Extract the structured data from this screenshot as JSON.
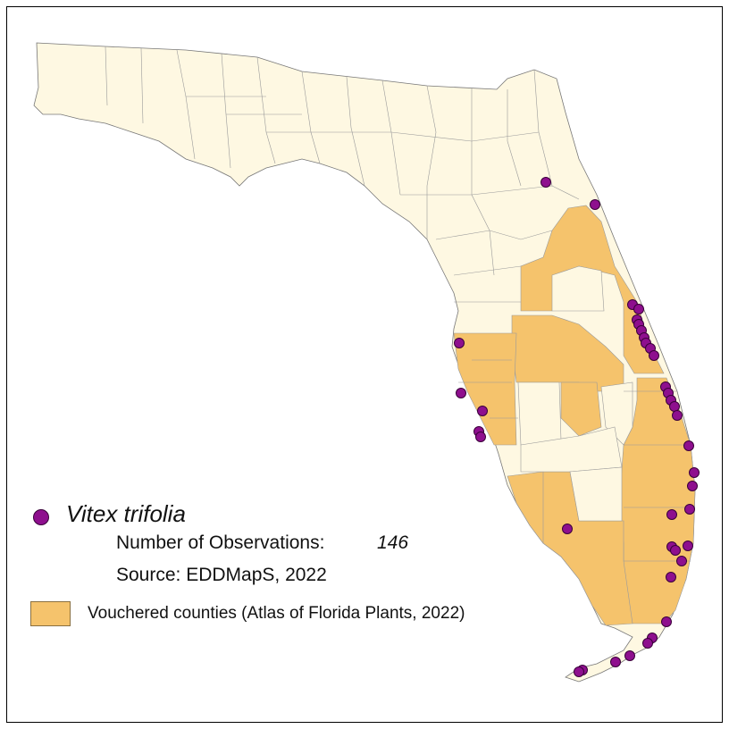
{
  "legend": {
    "species_name": "Vitex trifolia",
    "observations_label": "Number of Observations:",
    "observations_value": "146",
    "source_label": "Source: EDDMapS, 2022",
    "vouchered_label": "Vouchered counties (Atlas of Florida Plants, 2022)"
  },
  "colors": {
    "land": "#fef8e2",
    "vouchered": "#f5c36c",
    "county_line": "#9a9a9a",
    "marker_fill": "#8e0f8e",
    "marker_stroke": "#3a003a"
  }
}
